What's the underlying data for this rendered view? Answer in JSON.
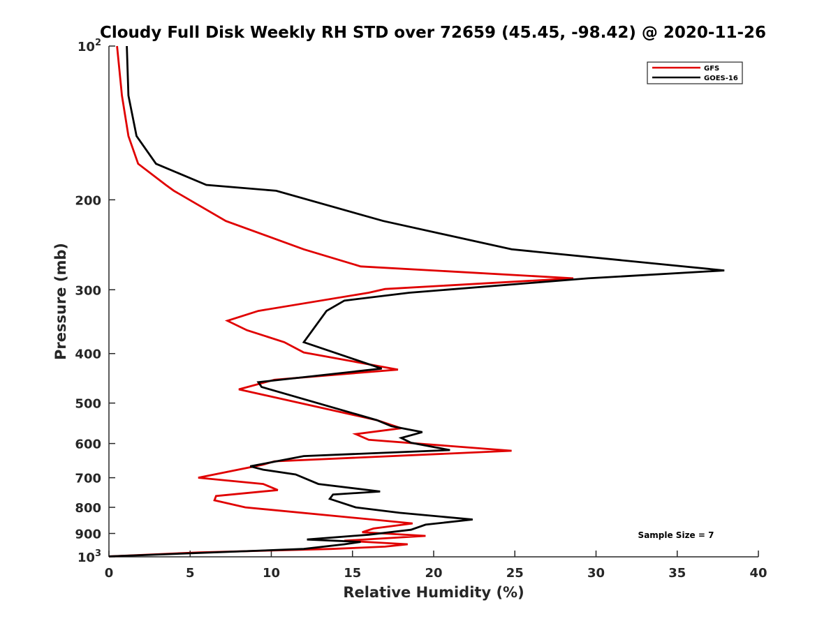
{
  "chart_data": {
    "type": "line",
    "title": "Cloudy Full Disk Weekly RH STD over 72659 (45.45, -98.42) @ 2020-11-26",
    "xlabel": "Relative Humidity (%)",
    "ylabel": "Pressure (mb)",
    "xlim": [
      0,
      40
    ],
    "ylim": [
      100,
      1000
    ],
    "y_scale": "log",
    "y_reversed": true,
    "grid": false,
    "legend_position": "top-right",
    "x_ticks": [
      "0",
      "5",
      "10",
      "15",
      "20",
      "25",
      "30",
      "35",
      "40"
    ],
    "y_ticks": [
      {
        "value": 100,
        "base": "10",
        "exp": "2"
      },
      {
        "value": 200,
        "label": "200"
      },
      {
        "value": 300,
        "label": "300"
      },
      {
        "value": 400,
        "label": "400"
      },
      {
        "value": 500,
        "label": "500"
      },
      {
        "value": 600,
        "label": "600"
      },
      {
        "value": 700,
        "label": "700"
      },
      {
        "value": 800,
        "label": "800"
      },
      {
        "value": 900,
        "label": "900"
      },
      {
        "value": 1000,
        "base": "10",
        "exp": "3"
      }
    ],
    "annotation": "Sample Size = 7",
    "series": [
      {
        "name": "GFS",
        "color": "#e00000",
        "points": [
          [
            0.5,
            100
          ],
          [
            0.8,
            125
          ],
          [
            1.2,
            150
          ],
          [
            1.8,
            170
          ],
          [
            3.5,
            187
          ],
          [
            4.0,
            192
          ],
          [
            7.2,
            220
          ],
          [
            12.0,
            250
          ],
          [
            15.5,
            270
          ],
          [
            28.6,
            285
          ],
          [
            17.0,
            299
          ],
          [
            16.0,
            304
          ],
          [
            9.2,
            330
          ],
          [
            7.3,
            345
          ],
          [
            8.5,
            360
          ],
          [
            10.8,
            380
          ],
          [
            12.0,
            398
          ],
          [
            17.8,
            430
          ],
          [
            10.2,
            450
          ],
          [
            8.0,
            470
          ],
          [
            16.5,
            540
          ],
          [
            18.0,
            560
          ],
          [
            15.2,
            575
          ],
          [
            16.0,
            590
          ],
          [
            24.8,
            620
          ],
          [
            10.2,
            650
          ],
          [
            9.5,
            660
          ],
          [
            5.5,
            700
          ],
          [
            9.5,
            720
          ],
          [
            10.4,
            740
          ],
          [
            6.6,
            760
          ],
          [
            6.5,
            775
          ],
          [
            8.4,
            800
          ],
          [
            18.7,
            860
          ],
          [
            16.3,
            880
          ],
          [
            15.6,
            895
          ],
          [
            19.5,
            910
          ],
          [
            14.5,
            930
          ],
          [
            18.4,
            945
          ],
          [
            17.0,
            955
          ],
          [
            13.7,
            965
          ],
          [
            5.6,
            980
          ],
          [
            0.0,
            998
          ]
        ]
      },
      {
        "name": "GOES-16",
        "color": "#000000",
        "points": [
          [
            1.1,
            100
          ],
          [
            1.2,
            125
          ],
          [
            1.7,
            150
          ],
          [
            2.9,
            170
          ],
          [
            6.0,
            187
          ],
          [
            10.3,
            192
          ],
          [
            16.9,
            220
          ],
          [
            24.8,
            250
          ],
          [
            37.9,
            275
          ],
          [
            29.5,
            285
          ],
          [
            18.5,
            304
          ],
          [
            14.5,
            315
          ],
          [
            13.4,
            330
          ],
          [
            12.0,
            380
          ],
          [
            16.8,
            428
          ],
          [
            9.2,
            455
          ],
          [
            9.4,
            465
          ],
          [
            16.5,
            540
          ],
          [
            17.4,
            555
          ],
          [
            19.3,
            570
          ],
          [
            18.0,
            585
          ],
          [
            18.6,
            598
          ],
          [
            21.0,
            618
          ],
          [
            12.0,
            635
          ],
          [
            8.7,
            665
          ],
          [
            9.5,
            675
          ],
          [
            11.5,
            690
          ],
          [
            12.9,
            720
          ],
          [
            16.7,
            745
          ],
          [
            13.8,
            755
          ],
          [
            13.6,
            770
          ],
          [
            15.2,
            800
          ],
          [
            17.9,
            820
          ],
          [
            22.4,
            845
          ],
          [
            19.5,
            865
          ],
          [
            18.6,
            885
          ],
          [
            16.0,
            905
          ],
          [
            12.2,
            925
          ],
          [
            15.5,
            935
          ],
          [
            14.5,
            945
          ],
          [
            12.0,
            965
          ],
          [
            0.0,
            998
          ]
        ]
      }
    ]
  }
}
